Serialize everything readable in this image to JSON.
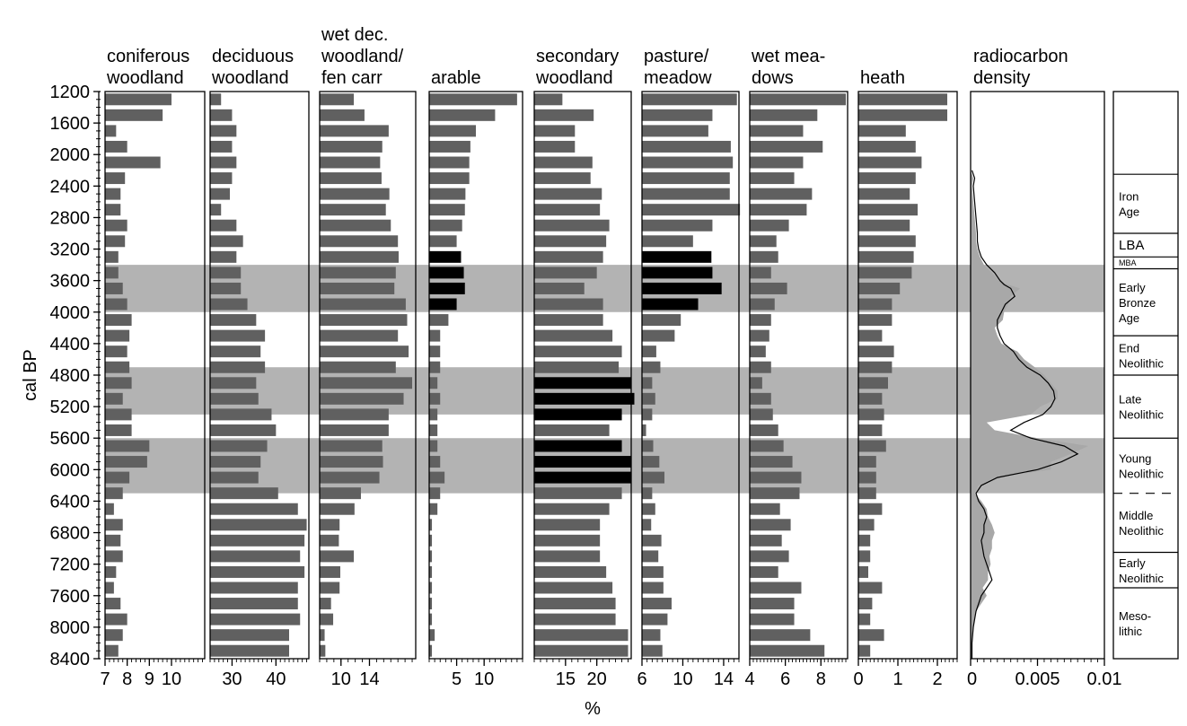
{
  "chart_data": {
    "type": "bar",
    "orientation": "horizontal",
    "ylabel": "cal BP",
    "xlabel": "%",
    "y_ticks": [
      1200,
      1600,
      2000,
      2400,
      2800,
      3200,
      3600,
      4000,
      4400,
      4800,
      5200,
      5600,
      6000,
      6400,
      6800,
      7200,
      7600,
      8000,
      8400
    ],
    "ylim": [
      1200,
      8400
    ],
    "time_bins": [
      1300,
      1500,
      1700,
      1900,
      2100,
      2300,
      2500,
      2700,
      2900,
      3100,
      3300,
      3500,
      3700,
      3900,
      4100,
      4300,
      4500,
      4700,
      4900,
      5100,
      5300,
      5500,
      5700,
      5900,
      6100,
      6300,
      6500,
      6700,
      6900,
      7100,
      7300,
      7500,
      7700,
      7900,
      8100,
      8300
    ],
    "shaded_bands": [
      [
        3400,
        4000
      ],
      [
        4700,
        5300
      ],
      [
        5600,
        6300
      ]
    ],
    "colors": {
      "bar": "#606060",
      "highlight": "#000000",
      "band": "#b3b3b3",
      "density_fill": "#a8a8a8",
      "density_line": "#000000"
    },
    "panels": [
      {
        "header": [
          "coniferous",
          "woodland"
        ],
        "xlim": [
          7,
          11.5
        ],
        "ticks": [
          7,
          8,
          9,
          10
        ],
        "tick_labels": [
          "7",
          "8",
          "9",
          "10"
        ],
        "values": [
          10.0,
          9.6,
          7.5,
          8.0,
          9.5,
          7.9,
          7.7,
          7.7,
          8.0,
          7.9,
          7.6,
          7.6,
          7.8,
          8.0,
          8.2,
          8.1,
          8.0,
          8.1,
          8.2,
          7.8,
          8.2,
          8.2,
          9.0,
          8.9,
          8.1,
          7.8,
          7.4,
          7.8,
          7.7,
          7.8,
          7.5,
          7.4,
          7.7,
          8.0,
          7.8,
          7.6
        ],
        "highlight": []
      },
      {
        "header": [
          "deciduous",
          "woodland"
        ],
        "xlim": [
          25,
          47.5
        ],
        "ticks": [
          30,
          40
        ],
        "tick_labels": [
          "30",
          "40"
        ],
        "values": [
          27.5,
          30,
          31,
          30,
          31,
          30,
          29.5,
          27.5,
          31,
          32.5,
          31,
          32,
          32,
          33.5,
          35.5,
          37.5,
          36.5,
          37.5,
          35.5,
          36,
          39,
          40,
          38,
          36.5,
          36,
          40.5,
          45,
          47,
          46.5,
          45.5,
          46.5,
          45,
          45,
          45.5,
          43,
          43
        ],
        "highlight": []
      },
      {
        "header": [
          "wet dec.",
          "woodland/",
          "fen carr"
        ],
        "xlim": [
          7,
          20.5
        ],
        "ticks": [
          10,
          14
        ],
        "tick_labels": [
          "10",
          "14"
        ],
        "values": [
          11.8,
          13.3,
          16.7,
          15.8,
          15.5,
          15.7,
          16.8,
          16.3,
          17.0,
          18.0,
          18.1,
          17.7,
          17.5,
          19.1,
          19.3,
          18.0,
          19.5,
          17.7,
          20.0,
          18.8,
          16.7,
          16.7,
          15.8,
          15.9,
          15.4,
          12.8,
          11.9,
          9.8,
          9.7,
          11.8,
          9.9,
          9.8,
          8.6,
          8.9,
          7.7,
          7.8
        ],
        "highlight": []
      },
      {
        "header": [
          "arable"
        ],
        "xlim": [
          0,
          17
        ],
        "ticks": [
          5,
          10
        ],
        "tick_labels": [
          "5",
          "10"
        ],
        "values": [
          16.0,
          12.0,
          8.5,
          7.5,
          7.3,
          7.3,
          6.6,
          6.5,
          6.0,
          5.0,
          5.8,
          6.3,
          6.5,
          5.0,
          3.5,
          2.0,
          2.0,
          2.0,
          1.5,
          2.0,
          1.5,
          1.5,
          1.5,
          2.0,
          2.8,
          2.0,
          1.5,
          0.5,
          0.5,
          0.5,
          0.5,
          0.5,
          0.5,
          0.5,
          1.0,
          0.5
        ],
        "highlight": [
          10,
          11,
          12,
          13
        ]
      },
      {
        "header": [
          "secondary",
          "woodland"
        ],
        "xlim": [
          10,
          25.5
        ],
        "ticks": [
          15,
          20
        ],
        "tick_labels": [
          "15",
          "20"
        ],
        "values": [
          14.5,
          19.5,
          16.5,
          16.5,
          19.3,
          19.0,
          20.8,
          20.5,
          22.0,
          21.5,
          21.0,
          20.0,
          18.0,
          21.0,
          21.0,
          22.5,
          24.0,
          23.5,
          25.5,
          26.0,
          24.0,
          22.0,
          24.0,
          25.5,
          25.5,
          24.0,
          22.0,
          20.5,
          20.5,
          20.5,
          21.5,
          22.5,
          23.0,
          23.0,
          25.0,
          25.0
        ],
        "highlight": [
          18,
          19,
          20,
          22,
          23,
          24
        ]
      },
      {
        "header": [
          "pasture/",
          "meadow"
        ],
        "xlim": [
          6,
          15.5
        ],
        "ticks": [
          6,
          10,
          14
        ],
        "tick_labels": [
          "6",
          "10",
          "14"
        ],
        "values": [
          15.3,
          12.9,
          12.5,
          14.7,
          14.9,
          14.6,
          14.6,
          15.6,
          12.9,
          11.0,
          12.8,
          12.9,
          13.8,
          11.5,
          9.8,
          9.2,
          7.4,
          7.8,
          7.0,
          7.3,
          7.0,
          6.4,
          7.1,
          7.7,
          8.2,
          7.0,
          7.3,
          6.9,
          7.9,
          7.6,
          8.1,
          8.1,
          8.9,
          8.5,
          7.8,
          8.0
        ],
        "highlight": [
          10,
          11,
          12,
          13
        ]
      },
      {
        "header": [
          "wet mea-",
          "dows"
        ],
        "xlim": [
          4,
          9.5
        ],
        "ticks": [
          4,
          6,
          8
        ],
        "tick_labels": [
          "4",
          "6",
          "8"
        ],
        "values": [
          9.4,
          7.8,
          7.0,
          8.1,
          7.0,
          6.5,
          7.5,
          7.2,
          6.2,
          5.5,
          5.6,
          5.2,
          6.1,
          5.4,
          5.2,
          5.1,
          4.9,
          5.2,
          4.7,
          5.2,
          5.3,
          5.6,
          5.9,
          6.4,
          6.9,
          6.8,
          5.7,
          6.3,
          5.8,
          6.2,
          5.6,
          6.9,
          6.5,
          6.5,
          7.4,
          8.2
        ],
        "highlight": []
      },
      {
        "header": [
          "heath"
        ],
        "xlim": [
          0,
          2.5
        ],
        "ticks": [
          0,
          1,
          2
        ],
        "tick_labels": [
          "0",
          "1",
          "2"
        ],
        "values": [
          2.25,
          2.25,
          1.2,
          1.45,
          1.6,
          1.45,
          1.3,
          1.5,
          1.3,
          1.45,
          1.4,
          1.35,
          1.05,
          0.85,
          0.85,
          0.6,
          0.9,
          0.85,
          0.75,
          0.6,
          0.65,
          0.6,
          0.7,
          0.45,
          0.45,
          0.45,
          0.6,
          0.4,
          0.3,
          0.3,
          0.25,
          0.6,
          0.35,
          0.3,
          0.65,
          0.3
        ],
        "highlight": []
      }
    ],
    "density": {
      "header": [
        "radiocarbon",
        "density"
      ],
      "xlim": [
        0,
        0.01
      ],
      "ticks": [
        0,
        0.005,
        0.01
      ],
      "tick_labels": [
        "0",
        "0.005",
        "0.01"
      ],
      "y": [
        2200,
        2300,
        2400,
        2600,
        2800,
        3000,
        3100,
        3200,
        3300,
        3400,
        3500,
        3600,
        3650,
        3700,
        3800,
        3900,
        4000,
        4100,
        4200,
        4300,
        4400,
        4500,
        4600,
        4700,
        4800,
        4900,
        5000,
        5100,
        5200,
        5300,
        5400,
        5500,
        5600,
        5700,
        5800,
        5900,
        6000,
        6100,
        6200,
        6300,
        6400,
        6500,
        6600,
        6700,
        6800,
        6900,
        7000,
        7100,
        7200,
        7300,
        7400,
        7500,
        7600,
        7800,
        8000,
        8200,
        8400
      ],
      "line": [
        0.0001,
        0.0003,
        0.0002,
        0.0003,
        0.0004,
        0.0005,
        0.0005,
        0.0006,
        0.0008,
        0.0012,
        0.0018,
        0.0022,
        0.0025,
        0.003,
        0.0033,
        0.0026,
        0.0023,
        0.002,
        0.002,
        0.0022,
        0.0025,
        0.0032,
        0.0036,
        0.0042,
        0.0052,
        0.0058,
        0.0062,
        0.0063,
        0.006,
        0.0054,
        0.004,
        0.003,
        0.0045,
        0.007,
        0.008,
        0.0068,
        0.005,
        0.002,
        0.0008,
        0.0004,
        0.0006,
        0.001,
        0.0012,
        0.001,
        0.001,
        0.0008,
        0.0009,
        0.001,
        0.0012,
        0.0014,
        0.0016,
        0.0012,
        0.0008,
        0.0004,
        0.0002,
        0.0001,
        0.0001
      ],
      "fill": [
        0.0,
        0.0002,
        0.0001,
        0.0002,
        0.0003,
        0.0004,
        0.0004,
        0.0005,
        0.0007,
        0.001,
        0.0016,
        0.0021,
        0.0028,
        0.0037,
        0.003,
        0.0028,
        0.0025,
        0.0024,
        0.0018,
        0.002,
        0.0023,
        0.0035,
        0.004,
        0.0048,
        0.0055,
        0.006,
        0.0065,
        0.0065,
        0.0052,
        0.0045,
        0.0012,
        0.0018,
        0.005,
        0.0088,
        0.0075,
        0.006,
        0.006,
        0.0018,
        0.0006,
        0.0003,
        0.0008,
        0.0012,
        0.0013,
        0.0016,
        0.0018,
        0.0016,
        0.0016,
        0.0014,
        0.0015,
        0.0013,
        0.0013,
        0.0009,
        0.0012,
        0.0004,
        0.0002,
        0.0001,
        0.0001
      ]
    },
    "periods": [
      {
        "label": [
          "Iron",
          "Age"
        ],
        "start": 2250,
        "end": 3000,
        "divider": "solid"
      },
      {
        "label": [
          "LBA"
        ],
        "start": 3000,
        "end": 3300,
        "divider": "solid"
      },
      {
        "label": [
          "MBA"
        ],
        "start": 3300,
        "end": 3450,
        "divider": "solid"
      },
      {
        "label": [
          "Early",
          "Bronze",
          "Age"
        ],
        "start": 3450,
        "end": 4300,
        "divider": "solid"
      },
      {
        "label": [
          "End",
          "Neolithic"
        ],
        "start": 4300,
        "end": 4800,
        "divider": "solid"
      },
      {
        "label": [
          "Late",
          "Neolithic"
        ],
        "start": 4800,
        "end": 5600,
        "divider": "solid"
      },
      {
        "label": [
          "Young",
          "Neolithic"
        ],
        "start": 5600,
        "end": 6300,
        "divider": "dashed"
      },
      {
        "label": [
          "Middle",
          "Neolithic"
        ],
        "start": 6300,
        "end": 7050,
        "divider": "solid"
      },
      {
        "label": [
          "Early",
          "Neolithic"
        ],
        "start": 7050,
        "end": 7500,
        "divider": "solid"
      },
      {
        "label": [
          "Meso-",
          "lithic"
        ],
        "start": 7500,
        "end": 8400,
        "divider": "none"
      }
    ]
  }
}
